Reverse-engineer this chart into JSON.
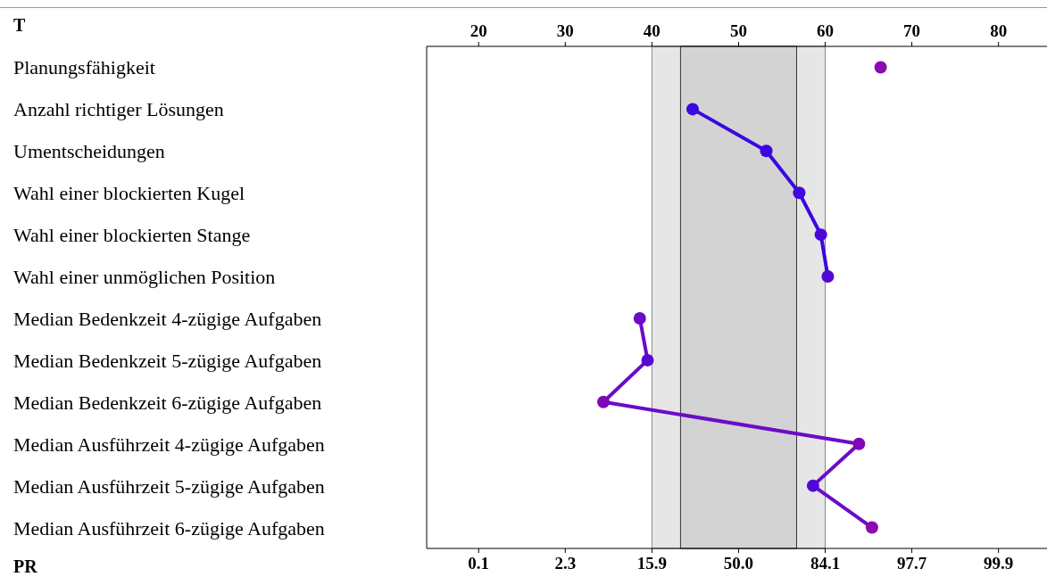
{
  "chart_data": {
    "type": "line",
    "orientation": "horizontal",
    "xlabel": "T",
    "categories": [
      "Planungsfähigkeit",
      "Anzahl richtiger Lösungen",
      "Umentscheidungen",
      "Wahl einer blockierten Kugel",
      "Wahl einer blockierten Stange",
      "Wahl einer unmöglichen Position",
      "Median Bedenkzeit 4-zügige Aufgaben",
      "Median Bedenkzeit 5-zügige Aufgaben",
      "Median Bedenkzeit 6-zügige Aufgaben",
      "Median Ausführzeit 4-zügige Aufgaben",
      "Median Ausführzeit 5-zügige Aufgaben",
      "Median Ausführzeit 6-zügige Aufgaben"
    ],
    "xlim": [
      14,
      85.6
    ],
    "xticks": [
      20,
      30,
      40,
      50,
      60,
      70,
      80
    ],
    "annotations": [
      "PR",
      "0.1",
      "2.3",
      "15.9",
      "50.0",
      "84.1",
      "97.7",
      "99.9"
    ],
    "series": [
      {
        "color": "#8c0cb0",
        "values": [
          66.4,
          null,
          null,
          null,
          null,
          null,
          null,
          null,
          null,
          null,
          null,
          null
        ],
        "colors": [
          "#8c0cb0",
          null,
          null,
          null,
          null,
          null,
          null,
          null,
          null,
          null,
          null,
          null
        ]
      },
      {
        "color": "#3a08e0",
        "values": [
          null,
          44.7,
          53.2,
          57.0,
          59.5,
          60.3,
          null,
          null,
          null,
          null,
          null,
          null
        ],
        "colors": [
          null,
          "#3a08e0",
          "#3a08e0",
          "#4008dc",
          "#4a08d8",
          "#5008d4",
          null,
          null,
          null,
          null,
          null,
          null
        ]
      },
      {
        "color": "#6a0cc8",
        "values": [
          null,
          null,
          null,
          null,
          null,
          null,
          38.6,
          39.5,
          34.4,
          63.9,
          58.6,
          65.4
        ],
        "colors": [
          null,
          null,
          null,
          null,
          null,
          null,
          "#6a0cc8",
          "#5a08d4",
          "#8008b8",
          "#8008b8",
          "#5008d8",
          "#8c08b0"
        ]
      }
    ],
    "bands": [
      {
        "axis": "x",
        "from": 40,
        "to": 60,
        "color": "#e6e6e6"
      },
      {
        "axis": "x",
        "from": 43.3,
        "to": 56.7,
        "color": "#d3d3d3"
      }
    ],
    "marker": "circle",
    "line_style": "solid"
  }
}
